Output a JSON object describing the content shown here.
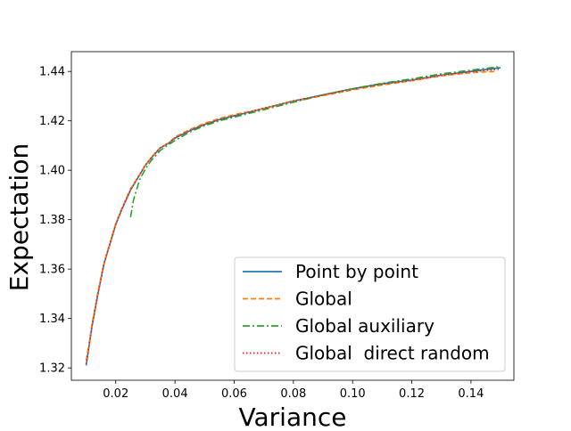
{
  "chart_data": {
    "type": "line",
    "title": "",
    "xlabel": "Variance",
    "ylabel": "Expectation",
    "xlim": [
      0.005,
      0.1545
    ],
    "ylim": [
      1.315,
      1.448
    ],
    "xticks": [
      0.02,
      0.04,
      0.06,
      0.08,
      0.1,
      0.12,
      0.14
    ],
    "xtick_labels": [
      "0.02",
      "0.04",
      "0.06",
      "0.08",
      "0.10",
      "0.12",
      "0.14"
    ],
    "yticks": [
      1.32,
      1.34,
      1.36,
      1.38,
      1.4,
      1.42,
      1.44
    ],
    "ytick_labels": [
      "1.32",
      "1.34",
      "1.36",
      "1.38",
      "1.40",
      "1.42",
      "1.44"
    ],
    "grid": false,
    "legend_position": "lower-right",
    "series": [
      {
        "name": "Point by point",
        "color": "#1f77b4",
        "style": "solid",
        "x": [
          0.01,
          0.011,
          0.012,
          0.014,
          0.016,
          0.018,
          0.02,
          0.022,
          0.025,
          0.028,
          0.03,
          0.032,
          0.035,
          0.038,
          0.04,
          0.045,
          0.05,
          0.055,
          0.06,
          0.07,
          0.08,
          0.09,
          0.1,
          0.11,
          0.12,
          0.13,
          0.14,
          0.15
        ],
        "y": [
          1.321,
          1.329,
          1.337,
          1.35,
          1.362,
          1.37,
          1.378,
          1.384,
          1.392,
          1.398,
          1.402,
          1.405,
          1.409,
          1.411,
          1.413,
          1.416,
          1.4185,
          1.4205,
          1.422,
          1.425,
          1.428,
          1.4305,
          1.433,
          1.435,
          1.4365,
          1.4385,
          1.44,
          1.4415
        ]
      },
      {
        "name": "Global",
        "color": "#ff7f0e",
        "style": "dashed",
        "x": [
          0.01,
          0.011,
          0.012,
          0.014,
          0.016,
          0.018,
          0.02,
          0.022,
          0.025,
          0.028,
          0.03,
          0.032,
          0.035,
          0.038,
          0.04,
          0.045,
          0.05,
          0.055,
          0.06,
          0.07,
          0.08,
          0.09,
          0.1,
          0.11,
          0.12,
          0.13,
          0.14,
          0.148
        ],
        "y": [
          1.323,
          1.33,
          1.338,
          1.351,
          1.3625,
          1.3705,
          1.3785,
          1.3845,
          1.3925,
          1.3982,
          1.4022,
          1.4052,
          1.4092,
          1.4112,
          1.4135,
          1.4165,
          1.419,
          1.421,
          1.4225,
          1.425,
          1.4278,
          1.4302,
          1.4325,
          1.4345,
          1.4362,
          1.4382,
          1.4395,
          1.44
        ]
      },
      {
        "name": "Global auxiliary",
        "color": "#2ca02c",
        "style": "dashdot",
        "x": [
          0.025,
          0.026,
          0.028,
          0.03,
          0.032,
          0.035,
          0.038,
          0.04,
          0.045,
          0.05,
          0.055,
          0.06,
          0.07,
          0.08,
          0.09,
          0.1,
          0.11,
          0.12,
          0.13,
          0.14,
          0.15
        ],
        "y": [
          1.381,
          1.388,
          1.396,
          1.4005,
          1.404,
          1.408,
          1.4105,
          1.412,
          1.4155,
          1.418,
          1.42,
          1.4215,
          1.4245,
          1.4275,
          1.4305,
          1.433,
          1.4352,
          1.437,
          1.439,
          1.4405,
          1.442
        ]
      },
      {
        "name": "Global  direct random",
        "color": "#d62728",
        "style": "dotted",
        "x": [
          0.01,
          0.011,
          0.012,
          0.014,
          0.016,
          0.018,
          0.02,
          0.022,
          0.025,
          0.028,
          0.03,
          0.032,
          0.035,
          0.038,
          0.04,
          0.045,
          0.05,
          0.055,
          0.06,
          0.07,
          0.08,
          0.09,
          0.1,
          0.11,
          0.12,
          0.13,
          0.14,
          0.15
        ],
        "y": [
          1.3215,
          1.3292,
          1.3372,
          1.3502,
          1.3622,
          1.3702,
          1.3782,
          1.3842,
          1.3922,
          1.3981,
          1.4021,
          1.4051,
          1.4091,
          1.4111,
          1.4131,
          1.4161,
          1.4186,
          1.4206,
          1.4221,
          1.4251,
          1.4281,
          1.4304,
          1.4328,
          1.4348,
          1.4364,
          1.4384,
          1.4398,
          1.441
        ]
      }
    ]
  }
}
